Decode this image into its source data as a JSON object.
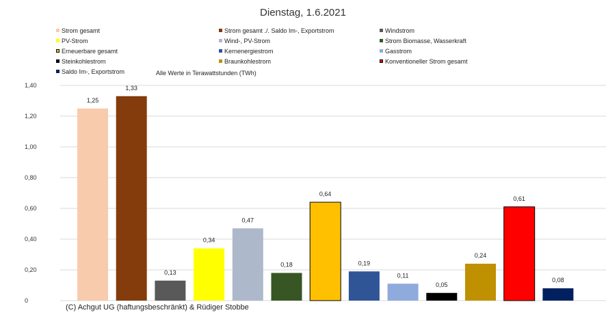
{
  "chart_data": {
    "type": "bar",
    "title": "Dienstag, 1.6.2021",
    "subtitle": "Alle Werte in Terawattstunden (TWh)",
    "xlabel": "",
    "ylabel": "",
    "ylim": [
      0,
      1.4
    ],
    "yticks": [
      {
        "value": 0,
        "label": "0"
      },
      {
        "value": 0.2,
        "label": "0,20"
      },
      {
        "value": 0.4,
        "label": "0,40"
      },
      {
        "value": 0.6,
        "label": "0,60"
      },
      {
        "value": 0.8,
        "label": "0,80"
      },
      {
        "value": 1.0,
        "label": "1,00"
      },
      {
        "value": 1.2,
        "label": "1,20"
      },
      {
        "value": 1.4,
        "label": "1,40"
      }
    ],
    "grid": true,
    "legend_position": "top",
    "series": [
      {
        "name": "Strom gesamt",
        "value": 1.25,
        "label": "1,25",
        "color": "#F8CBAD",
        "outline": false
      },
      {
        "name": "Strom gesamt ./. Saldo Im-, Exportstrom",
        "value": 1.33,
        "label": "1,33",
        "color": "#843C0C",
        "outline": false
      },
      {
        "name": "Windstrom",
        "value": 0.13,
        "label": "0,13",
        "color": "#595959",
        "outline": false
      },
      {
        "name": "PV-Strom",
        "value": 0.34,
        "label": "0,34",
        "color": "#FFFF00",
        "outline": false
      },
      {
        "name": "Wind-, PV-Strom",
        "value": 0.47,
        "label": "0,47",
        "color": "#ADB9CA",
        "outline": false
      },
      {
        "name": "Strom Biomasse, Wasserkraft",
        "value": 0.18,
        "label": "0,18",
        "color": "#375623",
        "outline": false
      },
      {
        "name": "Erneuerbare gesamt",
        "value": 0.64,
        "label": "0,64",
        "color": "#FFC000",
        "outline": true
      },
      {
        "name": "Kernenergiestrom",
        "value": 0.19,
        "label": "0,19",
        "color": "#2F5597",
        "outline": false
      },
      {
        "name": "Gasstrom",
        "value": 0.11,
        "label": "0,11",
        "color": "#8FAADC",
        "outline": false
      },
      {
        "name": "Steinkohlestrom",
        "value": 0.05,
        "label": "0,05",
        "color": "#000000",
        "outline": false
      },
      {
        "name": "Braunkohlestrom",
        "value": 0.24,
        "label": "0,24",
        "color": "#BF9000",
        "outline": false
      },
      {
        "name": "Konventioneller Strom gesamt",
        "value": 0.61,
        "label": "0,61",
        "color": "#FF0000",
        "outline": true
      },
      {
        "name": "Saldo Im-, Exportstrom",
        "value": 0.08,
        "label": "0,08",
        "color": "#002060",
        "outline": false
      }
    ]
  },
  "footer": {
    "copyright": "(C) Achgut UG (haftungsbeschränkt) & Rüdiger Stobbe"
  }
}
